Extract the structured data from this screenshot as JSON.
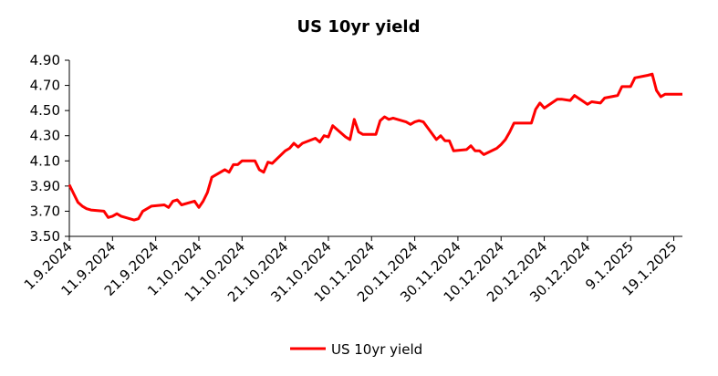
{
  "chart_data": {
    "type": "line",
    "title": "US 10yr yield",
    "ylim": [
      3.5,
      4.9
    ],
    "yticks": [
      "3.50",
      "3.70",
      "3.90",
      "4.10",
      "4.30",
      "4.50",
      "4.70",
      "4.90"
    ],
    "xticks": [
      "1.9.2024",
      "11.9.2024",
      "21.9.2024",
      "1.10.2024",
      "11.10.2024",
      "21.10.2024",
      "31.10.2024",
      "10.11.2024",
      "20.11.2024",
      "30.11.2024",
      "10.12.2024",
      "20.12.2024",
      "30.12.2024",
      "9.1.2025",
      "19.1.2025"
    ],
    "grid": false,
    "legend_position": "bottom",
    "series_color": "#ff0000",
    "series": [
      {
        "name": "US 10yr yield",
        "points": [
          [
            "2024-09-01",
            3.91
          ],
          [
            "2024-09-02",
            3.84
          ],
          [
            "2024-09-03",
            3.77
          ],
          [
            "2024-09-04",
            3.74
          ],
          [
            "2024-09-05",
            3.72
          ],
          [
            "2024-09-06",
            3.71
          ],
          [
            "2024-09-09",
            3.7
          ],
          [
            "2024-09-10",
            3.65
          ],
          [
            "2024-09-11",
            3.66
          ],
          [
            "2024-09-12",
            3.68
          ],
          [
            "2024-09-13",
            3.66
          ],
          [
            "2024-09-16",
            3.63
          ],
          [
            "2024-09-17",
            3.64
          ],
          [
            "2024-09-18",
            3.7
          ],
          [
            "2024-09-19",
            3.72
          ],
          [
            "2024-09-20",
            3.74
          ],
          [
            "2024-09-23",
            3.75
          ],
          [
            "2024-09-24",
            3.73
          ],
          [
            "2024-09-25",
            3.78
          ],
          [
            "2024-09-26",
            3.79
          ],
          [
            "2024-09-27",
            3.75
          ],
          [
            "2024-09-30",
            3.78
          ],
          [
            "2024-10-01",
            3.73
          ],
          [
            "2024-10-02",
            3.78
          ],
          [
            "2024-10-03",
            3.85
          ],
          [
            "2024-10-04",
            3.97
          ],
          [
            "2024-10-07",
            4.03
          ],
          [
            "2024-10-08",
            4.01
          ],
          [
            "2024-10-09",
            4.07
          ],
          [
            "2024-10-10",
            4.07
          ],
          [
            "2024-10-11",
            4.1
          ],
          [
            "2024-10-14",
            4.1
          ],
          [
            "2024-10-15",
            4.03
          ],
          [
            "2024-10-16",
            4.01
          ],
          [
            "2024-10-17",
            4.09
          ],
          [
            "2024-10-18",
            4.08
          ],
          [
            "2024-10-21",
            4.18
          ],
          [
            "2024-10-22",
            4.2
          ],
          [
            "2024-10-23",
            4.24
          ],
          [
            "2024-10-24",
            4.21
          ],
          [
            "2024-10-25",
            4.24
          ],
          [
            "2024-10-28",
            4.28
          ],
          [
            "2024-10-29",
            4.25
          ],
          [
            "2024-10-30",
            4.3
          ],
          [
            "2024-10-31",
            4.29
          ],
          [
            "2024-11-01",
            4.38
          ],
          [
            "2024-11-04",
            4.29
          ],
          [
            "2024-11-05",
            4.27
          ],
          [
            "2024-11-06",
            4.43
          ],
          [
            "2024-11-07",
            4.33
          ],
          [
            "2024-11-08",
            4.31
          ],
          [
            "2024-11-11",
            4.31
          ],
          [
            "2024-11-12",
            4.42
          ],
          [
            "2024-11-13",
            4.45
          ],
          [
            "2024-11-14",
            4.43
          ],
          [
            "2024-11-15",
            4.44
          ],
          [
            "2024-11-18",
            4.41
          ],
          [
            "2024-11-19",
            4.39
          ],
          [
            "2024-11-20",
            4.41
          ],
          [
            "2024-11-21",
            4.42
          ],
          [
            "2024-11-22",
            4.41
          ],
          [
            "2024-11-25",
            4.27
          ],
          [
            "2024-11-26",
            4.3
          ],
          [
            "2024-11-27",
            4.26
          ],
          [
            "2024-11-28",
            4.26
          ],
          [
            "2024-11-29",
            4.18
          ],
          [
            "2024-12-02",
            4.19
          ],
          [
            "2024-12-03",
            4.22
          ],
          [
            "2024-12-04",
            4.18
          ],
          [
            "2024-12-05",
            4.18
          ],
          [
            "2024-12-06",
            4.15
          ],
          [
            "2024-12-09",
            4.2
          ],
          [
            "2024-12-10",
            4.23
          ],
          [
            "2024-12-11",
            4.27
          ],
          [
            "2024-12-12",
            4.33
          ],
          [
            "2024-12-13",
            4.4
          ],
          [
            "2024-12-16",
            4.4
          ],
          [
            "2024-12-17",
            4.4
          ],
          [
            "2024-12-18",
            4.51
          ],
          [
            "2024-12-19",
            4.56
          ],
          [
            "2024-12-20",
            4.52
          ],
          [
            "2024-12-23",
            4.59
          ],
          [
            "2024-12-24",
            4.59
          ],
          [
            "2024-12-26",
            4.58
          ],
          [
            "2024-12-27",
            4.62
          ],
          [
            "2024-12-30",
            4.55
          ],
          [
            "2024-12-31",
            4.57
          ],
          [
            "2025-01-02",
            4.56
          ],
          [
            "2025-01-03",
            4.6
          ],
          [
            "2025-01-06",
            4.62
          ],
          [
            "2025-01-07",
            4.69
          ],
          [
            "2025-01-08",
            4.69
          ],
          [
            "2025-01-09",
            4.69
          ],
          [
            "2025-01-10",
            4.76
          ],
          [
            "2025-01-13",
            4.78
          ],
          [
            "2025-01-14",
            4.79
          ],
          [
            "2025-01-15",
            4.66
          ],
          [
            "2025-01-16",
            4.61
          ],
          [
            "2025-01-17",
            4.63
          ],
          [
            "2025-01-20",
            4.63
          ],
          [
            "2025-01-21",
            4.63
          ]
        ]
      }
    ]
  }
}
